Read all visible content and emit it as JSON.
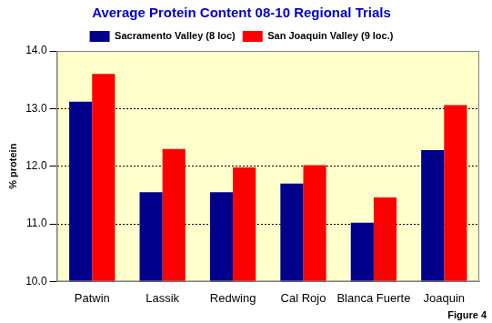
{
  "chart_data": {
    "type": "bar",
    "title": "Average Protein Content 08-10 Regional Trials",
    "y_label": "% protein",
    "annotation": "Figure 4",
    "categories": [
      "Patwin",
      "Lassik",
      "Redwing",
      "Cal Rojo",
      "Blanca Fuerte",
      "Joaquin"
    ],
    "series": [
      {
        "name": "Sacramento Valley (8 loc)",
        "color": "#00008B",
        "values": [
          13.12,
          11.55,
          11.55,
          11.7,
          11.02,
          12.28
        ]
      },
      {
        "name": "San Joaquin Valley (9 loc.)",
        "color": "#FF0000",
        "values": [
          13.6,
          12.3,
          11.98,
          12.02,
          11.46,
          13.06
        ]
      }
    ],
    "ylim": [
      10,
      14
    ],
    "yticks": [
      {
        "value": 10,
        "label": "10.0"
      },
      {
        "value": 11,
        "label": "11.0"
      },
      {
        "value": 12,
        "label": "12.0"
      },
      {
        "value": 13,
        "label": "13.0"
      },
      {
        "value": 14,
        "label": "14.0"
      }
    ],
    "grid": true,
    "legend": "top"
  }
}
